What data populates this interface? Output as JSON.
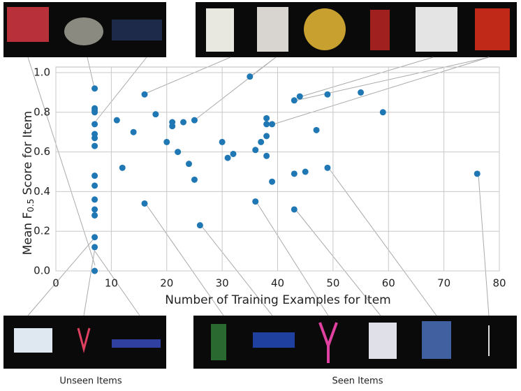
{
  "chart_data": {
    "type": "scatter",
    "xlabel": "Number of Training Examples for Item",
    "ylabel_parts": [
      "Mean F",
      "0.5",
      " Score for Item"
    ],
    "captions": [
      "Unseen Items",
      "Seen Items"
    ],
    "color": "#1f77b4",
    "grid": true,
    "xlim": [
      0,
      80
    ],
    "ylim": [
      0,
      1
    ],
    "xticks": [
      0,
      10,
      20,
      30,
      40,
      50,
      60,
      70,
      80
    ],
    "yticks": [
      {
        "value": 0,
        "label": "0.0"
      },
      {
        "value": 0.2,
        "label": "0.2"
      },
      {
        "value": 0.4,
        "label": "0.4"
      },
      {
        "value": 0.6,
        "label": "0.6"
      },
      {
        "value": 0.8,
        "label": "0.8"
      },
      {
        "value": 1,
        "label": "1.0"
      }
    ],
    "x": [
      7,
      7,
      7,
      7,
      7,
      7,
      7,
      7,
      7,
      7,
      7,
      7,
      7,
      7,
      7,
      7,
      16,
      18,
      11,
      14,
      12,
      16,
      20,
      21,
      21,
      22,
      23,
      24,
      25,
      25,
      26,
      30,
      31,
      32,
      35,
      36,
      36,
      37,
      38,
      38,
      38,
      38,
      39,
      39,
      43,
      44,
      43,
      45,
      43,
      47,
      49,
      49,
      55,
      59,
      76
    ],
    "values": [
      0.92,
      0.82,
      0.81,
      0.8,
      0.74,
      0.69,
      0.67,
      0.63,
      0.48,
      0.43,
      0.36,
      0.31,
      0.28,
      0.17,
      0.12,
      0,
      0.89,
      0.79,
      0.76,
      0.7,
      0.52,
      0.34,
      0.65,
      0.75,
      0.73,
      0.6,
      0.75,
      0.54,
      0.76,
      0.46,
      0.23,
      0.65,
      0.57,
      0.59,
      0.98,
      0.61,
      0.35,
      0.65,
      0.77,
      0.74,
      0.68,
      0.58,
      0.74,
      0.45,
      0.86,
      0.88,
      0.49,
      0.5,
      0.31,
      0.71,
      0.89,
      0.52,
      0.9,
      0.8,
      0.49
    ]
  }
}
